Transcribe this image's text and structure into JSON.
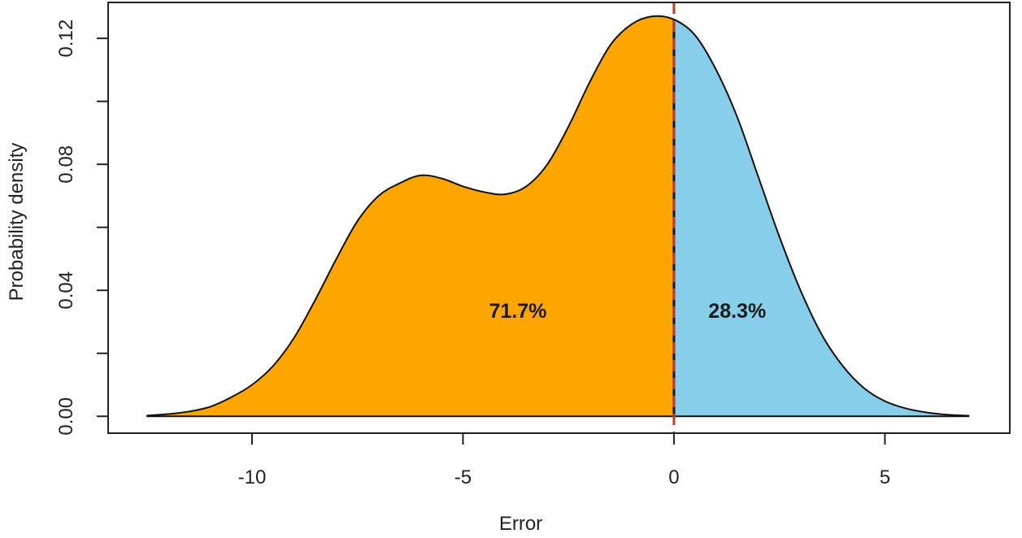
{
  "chart_data": {
    "type": "area",
    "xlabel": "Error",
    "ylabel": "Probability density",
    "xlim": [
      -13.41,
      7.96
    ],
    "ylim": [
      -0.00535,
      0.1314
    ],
    "x_ticks": [
      -10,
      -5,
      0,
      5
    ],
    "x_tick_labels": [
      "-10",
      "-5",
      "0",
      "5"
    ],
    "y_ticks": [
      0.0,
      0.02,
      0.04,
      0.06,
      0.08,
      0.1,
      0.12
    ],
    "y_tick_labels": [
      "0.00",
      "",
      "0.04",
      "",
      "0.08",
      "",
      "0.12"
    ],
    "grid": false,
    "legend": "none",
    "density_curve": {
      "x": [
        -12.5,
        -12.0,
        -11.5,
        -11.0,
        -10.5,
        -10.0,
        -9.5,
        -9.0,
        -8.5,
        -8.0,
        -7.5,
        -7.0,
        -6.5,
        -6.0,
        -5.5,
        -5.0,
        -4.5,
        -4.0,
        -3.5,
        -3.0,
        -2.5,
        -2.0,
        -1.5,
        -1.0,
        -0.5,
        0.0,
        0.5,
        1.0,
        1.5,
        2.0,
        2.5,
        3.0,
        3.5,
        4.0,
        4.5,
        5.0,
        5.5,
        6.0,
        6.5,
        7.0
      ],
      "y": [
        0.0002,
        0.0007,
        0.0015,
        0.003,
        0.006,
        0.01,
        0.016,
        0.025,
        0.037,
        0.05,
        0.062,
        0.07,
        0.074,
        0.0765,
        0.0755,
        0.073,
        0.0712,
        0.0705,
        0.073,
        0.08,
        0.092,
        0.106,
        0.118,
        0.1245,
        0.127,
        0.126,
        0.121,
        0.11,
        0.095,
        0.076,
        0.057,
        0.04,
        0.026,
        0.016,
        0.009,
        0.0048,
        0.0025,
        0.0012,
        0.0005,
        0.0002
      ]
    },
    "split_x": 0,
    "regions": [
      {
        "side": "below-0",
        "percent_label": "71.7%",
        "percent": 71.7,
        "label_x": -3.7,
        "label_y": 0.033,
        "color": "#FFA500"
      },
      {
        "side": "above-0",
        "percent_label": "28.3%",
        "percent": 28.3,
        "label_x": 1.5,
        "label_y": 0.033,
        "color": "#87CEEB"
      }
    ],
    "reference_line": {
      "x": 0,
      "style": "dashed",
      "color": "#C0392B"
    }
  }
}
